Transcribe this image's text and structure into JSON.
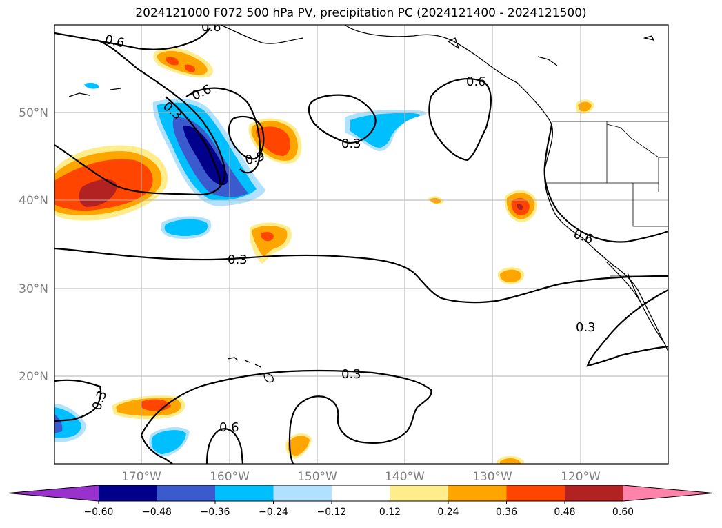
{
  "title": "2024121000 F072 500 hPa PV, precipitation PC (2024121400 - 2024121500)",
  "lat_labels": [
    "50°N",
    "40°N",
    "30°N",
    "20°N"
  ],
  "lon_labels": [
    "170°W",
    "160°W",
    "150°W",
    "140°W",
    "130°W",
    "120°W"
  ],
  "colorbar": {
    "ticks": [
      "−0.60",
      "−0.48",
      "−0.36",
      "−0.24",
      "−0.12",
      "0.12",
      "0.24",
      "0.36",
      "0.48",
      "0.60"
    ],
    "colors": [
      "#9932cc",
      "#00008b",
      "#3a5acd",
      "#00bfff",
      "#b0e2ff",
      "#ffffff",
      "#ffec8b",
      "#ffa500",
      "#ff4500",
      "#b22222",
      "#ff82ab"
    ]
  },
  "contour_labels": [
    "0.6",
    "0.6",
    "0.3",
    "0.6",
    "0.9",
    "0.6",
    "0.3",
    "0.3",
    "0.6",
    "0.3",
    "0.3",
    "0.3",
    "0.6"
  ]
}
